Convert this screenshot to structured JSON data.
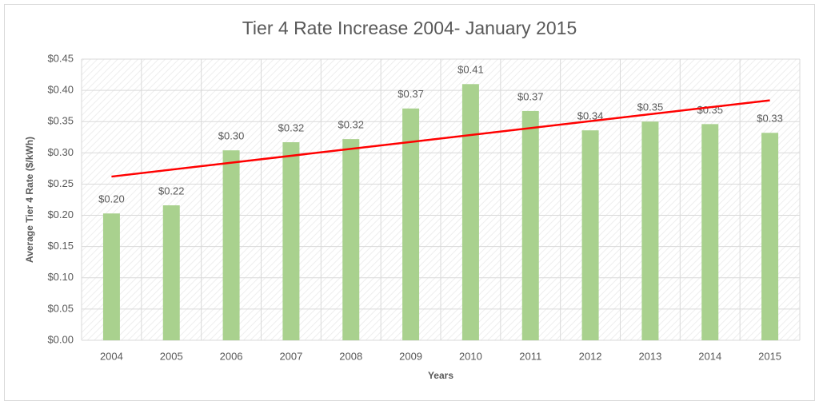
{
  "chart_data": {
    "type": "bar",
    "title": "Tier 4 Rate Increase 2004- January 2015",
    "x_label": "Years",
    "y_label": "Average Tier 4 Rate ($/kWh)",
    "categories": [
      "2004",
      "2005",
      "2006",
      "2007",
      "2008",
      "2009",
      "2010",
      "2011",
      "2012",
      "2013",
      "2014",
      "2015"
    ],
    "values": [
      0.203,
      0.216,
      0.304,
      0.317,
      0.322,
      0.371,
      0.41,
      0.367,
      0.336,
      0.35,
      0.346,
      0.332
    ],
    "value_labels": [
      "$0.20",
      "$0.22",
      "$0.30",
      "$0.32",
      "$0.32",
      "$0.37",
      "$0.41",
      "$0.37",
      "$0.34",
      "$0.35",
      "$0.35",
      "$0.33"
    ],
    "color": "#a9d18e",
    "trendline": {
      "values": [
        0.262,
        0.384
      ],
      "color": "#ff0000"
    },
    "ylim": [
      0,
      0.45
    ],
    "yticks": [
      {
        "value": 0,
        "label": "$0.00"
      },
      {
        "value": 0.05,
        "label": "$0.05"
      },
      {
        "value": 0.1,
        "label": "$0.10"
      },
      {
        "value": 0.15,
        "label": "$0.15"
      },
      {
        "value": 0.2,
        "label": "$0.20"
      },
      {
        "value": 0.25,
        "label": "$0.25"
      },
      {
        "value": 0.3,
        "label": "$0.30"
      },
      {
        "value": 0.35,
        "label": "$0.35"
      },
      {
        "value": 0.4,
        "label": "$0.40"
      },
      {
        "value": 0.45,
        "label": "$0.45"
      }
    ],
    "grid": true
  }
}
